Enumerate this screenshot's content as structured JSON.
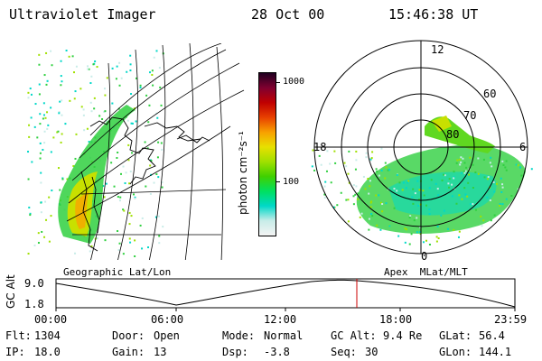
{
  "header": {
    "instrument": "Ultraviolet Imager",
    "date": "28 Oct 00",
    "time": "15:46:38 UT"
  },
  "colorbar": {
    "unit_label": "photon cm⁻²s⁻¹",
    "ticks": [
      "1000",
      "100"
    ],
    "colors": [
      "#f4f4f4",
      "#c8ece8",
      "#00d8c8",
      "#00e060",
      "#40d000",
      "#a0e000",
      "#e8e000",
      "#f8a000",
      "#e84000",
      "#c00000",
      "#800030",
      "#200020"
    ]
  },
  "left_panel": {
    "caption": "Geographic Lat/Lon"
  },
  "right_panel": {
    "caption": "Apex  MLat/MLT",
    "mlt_labels": {
      "top": "12",
      "left": "18",
      "right": "6",
      "bottom": "0"
    },
    "lat_labels": [
      "60",
      "70",
      "80"
    ]
  },
  "timeline": {
    "y_label": "GC Alt",
    "y_ticks": [
      "9.0",
      "1.8"
    ],
    "x_ticks": [
      "00:00",
      "06:00",
      "12:00",
      "18:00",
      "23:59"
    ],
    "marker_time": "15:46",
    "marker_color": "#cc0000"
  },
  "status": {
    "flt_label": "Flt:",
    "flt_value": "1304",
    "ip_label": "IP:",
    "ip_value": "18.0",
    "door_label": "Door:",
    "door_value": "Open",
    "gain_label": "Gain:",
    "gain_value": "13",
    "mode_label": "Mode:",
    "mode_value": "Normal",
    "dsp_label": "Dsp:",
    "dsp_value": "-3.8",
    "gcalt_label": "GC Alt:",
    "gcalt_value": "9.4 Re",
    "seq_label": "Seq:",
    "seq_value": "30",
    "glat_label": "GLat:",
    "glat_value": "56.4",
    "glon_label": "GLon:",
    "glon_value": "144.1"
  }
}
